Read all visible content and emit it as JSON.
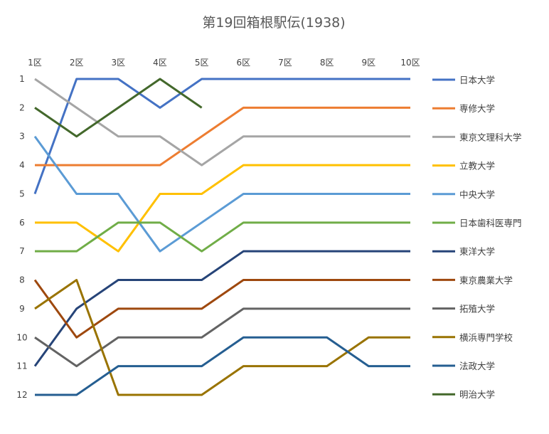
{
  "chart_data": {
    "type": "line",
    "title": "第19回箱根駅伝(1938)",
    "categories": [
      "1区",
      "2区",
      "3区",
      "4区",
      "5区",
      "6区",
      "7区",
      "8区",
      "9区",
      "10区"
    ],
    "y_ticks": [
      "1",
      "2",
      "3",
      "4",
      "5",
      "6",
      "7",
      "8",
      "9",
      "10",
      "11",
      "12"
    ],
    "ylim": [
      1,
      12
    ],
    "y_reversed": true,
    "grid": false,
    "legend_position": "right",
    "series": [
      {
        "name": "日本大学",
        "color": "#4472C4",
        "values": [
          5,
          1,
          1,
          2,
          1,
          1,
          1,
          1,
          1,
          1
        ]
      },
      {
        "name": "専修大学",
        "color": "#ED7D31",
        "values": [
          4,
          4,
          4,
          4,
          3,
          2,
          2,
          2,
          2,
          2
        ]
      },
      {
        "name": "東京文理科大学",
        "color": "#A5A5A5",
        "values": [
          1,
          2,
          3,
          3,
          4,
          3,
          3,
          3,
          3,
          3
        ]
      },
      {
        "name": "立教大学",
        "color": "#FFC000",
        "values": [
          6,
          6,
          7,
          5,
          5,
          4,
          4,
          4,
          4,
          4
        ]
      },
      {
        "name": "中央大学",
        "color": "#5B9BD5",
        "values": [
          3,
          5,
          5,
          7,
          6,
          5,
          5,
          5,
          5,
          5
        ]
      },
      {
        "name": "日本歯科医専門",
        "color": "#70AD47",
        "values": [
          7,
          7,
          6,
          6,
          7,
          6,
          6,
          6,
          6,
          6
        ]
      },
      {
        "name": "東洋大学",
        "color": "#264478",
        "values": [
          11,
          9,
          8,
          8,
          8,
          7,
          7,
          7,
          7,
          7
        ]
      },
      {
        "name": "東京農業大学",
        "color": "#9E480E",
        "values": [
          8,
          10,
          9,
          9,
          9,
          8,
          8,
          8,
          8,
          8
        ]
      },
      {
        "name": "拓殖大学",
        "color": "#636363",
        "values": [
          10,
          11,
          10,
          10,
          10,
          9,
          9,
          9,
          9,
          9
        ]
      },
      {
        "name": "横浜専門学校",
        "color": "#997300",
        "values": [
          9,
          8,
          12,
          12,
          12,
          11,
          11,
          11,
          10,
          10
        ]
      },
      {
        "name": "法政大学",
        "color": "#255E91",
        "values": [
          12,
          12,
          11,
          11,
          11,
          10,
          10,
          10,
          11,
          11
        ]
      },
      {
        "name": "明治大学",
        "color": "#43682B",
        "values": [
          2,
          3,
          2,
          1,
          2,
          null,
          null,
          null,
          null,
          null
        ]
      }
    ]
  }
}
